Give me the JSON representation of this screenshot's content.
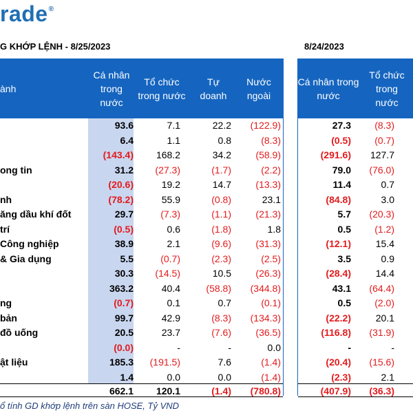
{
  "logo": {
    "text": "rade",
    "mark": "®"
  },
  "title_left": "G KHỚP LỆNH - 8/25/2023",
  "title_right": "8/24/2023",
  "headers_left": {
    "name": "ành",
    "cols": [
      "Cá nhân trong nước",
      "Tổ chức trong nước",
      "Tự doanh",
      "Nước ngoài"
    ]
  },
  "headers_right": {
    "cols": [
      "Cá nhân trong nước",
      "Tổ chức trong nước"
    ]
  },
  "rows": [
    {
      "name": "",
      "v": [
        "93.6",
        "7.1",
        "22.2",
        "(122.9)",
        "27.3",
        "(8.3)"
      ]
    },
    {
      "name": "",
      "v": [
        "6.4",
        "1.1",
        "0.8",
        "(8.3)",
        "(0.5)",
        "(0.7)"
      ]
    },
    {
      "name": "",
      "v": [
        "(143.4)",
        "168.2",
        "34.2",
        "(58.9)",
        "(291.6)",
        "127.7"
      ]
    },
    {
      "name": "ong tin",
      "v": [
        "31.2",
        "(27.3)",
        "(1.7)",
        "(2.2)",
        "79.0",
        "(76.0)"
      ]
    },
    {
      "name": "",
      "v": [
        "(20.6)",
        "19.2",
        "14.7",
        "(13.3)",
        "11.4",
        "0.7"
      ]
    },
    {
      "name": "nh",
      "v": [
        "(78.2)",
        "55.9",
        "(0.8)",
        "23.1",
        "(84.8)",
        "3.0"
      ]
    },
    {
      "name": "ăng dầu khí đốt",
      "v": [
        "29.7",
        "(7.3)",
        "(1.1)",
        "(21.3)",
        "5.7",
        "(20.3)"
      ]
    },
    {
      "name": "trí",
      "v": [
        "(0.5)",
        "0.6",
        "(1.8)",
        "1.8",
        "0.5",
        "(1.2)"
      ]
    },
    {
      "name": "Công nghiệp",
      "v": [
        "38.9",
        "2.1",
        "(9.6)",
        "(31.3)",
        "(12.1)",
        "15.4"
      ]
    },
    {
      "name": "& Gia dụng",
      "v": [
        "5.5",
        "(0.7)",
        "(2.3)",
        "(2.5)",
        "3.5",
        "0.9"
      ]
    },
    {
      "name": "",
      "v": [
        "30.3",
        "(14.5)",
        "10.5",
        "(26.3)",
        "(28.4)",
        "14.4"
      ]
    },
    {
      "name": "",
      "v": [
        "363.2",
        "40.4",
        "(58.8)",
        "(344.8)",
        "43.1",
        "(64.4)"
      ]
    },
    {
      "name": "ng",
      "v": [
        "(0.7)",
        "0.1",
        "0.7",
        "(0.1)",
        "0.5",
        "(2.0)"
      ]
    },
    {
      "name": "bản",
      "v": [
        "99.7",
        "42.9",
        "(8.3)",
        "(134.3)",
        "(22.2)",
        "20.1"
      ]
    },
    {
      "name": "đồ uống",
      "v": [
        "20.5",
        "23.7",
        "(7.6)",
        "(36.5)",
        "(116.8)",
        "(31.9)"
      ]
    },
    {
      "name": "",
      "v": [
        "(0.0)",
        "-",
        "-",
        "0.0",
        "-",
        "-"
      ]
    },
    {
      "name": "ật liệu",
      "v": [
        "185.3",
        "(191.5)",
        "7.6",
        "(1.4)",
        "(20.4)",
        "(15.6)"
      ]
    },
    {
      "name": "",
      "v": [
        "1.4",
        "0.0",
        "0.0",
        "(1.4)",
        "(2.3)",
        "2.1"
      ]
    }
  ],
  "total": {
    "v": [
      "662.1",
      "120.1",
      "(1.4)",
      "(780.8)",
      "(407.9)",
      "(36.3)"
    ]
  },
  "footnote": "ổ tính GD khớp lệnh trên sàn HOSE, Tỷ VND",
  "colors": {
    "header": "#1565c0",
    "highlight": "#c9d6ef",
    "negative": "#e31a1c",
    "logo": "#1f6fb5"
  }
}
